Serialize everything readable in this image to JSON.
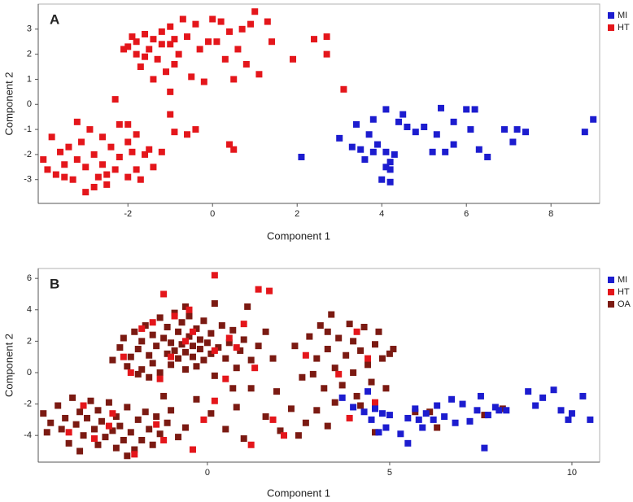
{
  "chart_data": [
    {
      "type": "scatter",
      "label": "A",
      "x_label": "Component 1",
      "y_label": "Component 2",
      "xlim": [
        -4.12,
        9.15
      ],
      "ylim": [
        -3.95,
        4.0
      ],
      "xticks": [
        -2,
        0,
        2,
        4,
        6,
        8
      ],
      "yticks": [
        -3,
        -2,
        -1,
        0,
        1,
        2,
        3
      ],
      "series": [
        {
          "name": "MI",
          "color": "#1c1ccf",
          "x": [
            2.1,
            3.0,
            3.3,
            3.4,
            3.5,
            3.6,
            3.7,
            3.8,
            3.9,
            4.0,
            4.1,
            4.1,
            4.2,
            4.2,
            4.2,
            4.3,
            4.4,
            4.5,
            4.6,
            4.8,
            5.0,
            5.2,
            5.3,
            5.4,
            5.5,
            5.7,
            5.7,
            6.0,
            6.1,
            6.2,
            6.3,
            6.5,
            6.9,
            7.1,
            7.2,
            7.4,
            8.8,
            9.0,
            4.1,
            3.8
          ],
          "values": [
            -2.1,
            -1.35,
            -1.7,
            -0.8,
            -1.8,
            -2.2,
            -1.2,
            -0.6,
            -1.6,
            -3.0,
            -0.2,
            -1.9,
            -2.3,
            -2.6,
            -3.1,
            -2.0,
            -0.7,
            -0.4,
            -0.9,
            -1.1,
            -0.9,
            -1.9,
            -1.2,
            -0.15,
            -1.9,
            -0.7,
            -1.6,
            -0.2,
            -1.0,
            -0.2,
            -1.8,
            -2.1,
            -1.0,
            -1.5,
            -1.0,
            -1.1,
            -1.1,
            -0.6,
            -2.5,
            -1.9
          ]
        },
        {
          "name": "HT",
          "color": "#e4161b",
          "x": [
            -2.1,
            -2.0,
            -1.9,
            -1.8,
            -1.7,
            -1.6,
            -1.5,
            -1.4,
            -1.4,
            -1.3,
            -1.2,
            -1.1,
            -1.0,
            -1.0,
            -0.9,
            -0.8,
            -0.7,
            -0.6,
            -0.5,
            -0.4,
            -0.3,
            -0.2,
            0.0,
            0.1,
            0.2,
            0.3,
            0.4,
            0.5,
            0.6,
            0.7,
            0.8,
            0.9,
            1.0,
            1.1,
            1.3,
            1.4,
            1.9,
            2.4,
            2.7,
            2.7,
            3.1,
            -1.8,
            -1.6,
            -1.2,
            -0.9,
            -0.1,
            -2.3,
            -2.0,
            -1.0,
            -1.0,
            -1.2,
            -0.4,
            -0.6,
            0.4,
            0.5,
            -0.9,
            -4.0,
            -3.9,
            -3.8,
            -3.7,
            -3.6,
            -3.5,
            -3.4,
            -3.3,
            -3.2,
            -3.2,
            -3.1,
            -3.0,
            -3.0,
            -2.9,
            -2.8,
            -2.7,
            -2.6,
            -2.6,
            -2.5,
            -2.4,
            -2.3,
            -2.2,
            -2.2,
            -2.0,
            -2.0,
            -1.9,
            -1.8,
            -1.7,
            -1.5,
            -1.4,
            -2.5,
            -3.5,
            -2.8,
            -1.8,
            -1.6
          ],
          "values": [
            2.2,
            2.3,
            2.7,
            2.0,
            1.5,
            2.8,
            2.2,
            1.0,
            2.6,
            1.8,
            2.9,
            1.3,
            2.4,
            3.1,
            1.6,
            2.0,
            3.4,
            2.7,
            1.1,
            3.2,
            2.2,
            0.9,
            3.4,
            2.5,
            3.3,
            1.8,
            2.9,
            1.0,
            2.2,
            3.0,
            1.6,
            3.2,
            3.7,
            1.2,
            3.3,
            2.5,
            1.8,
            2.6,
            2.7,
            2.0,
            0.6,
            2.5,
            1.9,
            2.4,
            2.6,
            2.5,
            0.2,
            -0.8,
            -0.4,
            0.5,
            -1.9,
            -1.0,
            -1.2,
            -1.6,
            -1.8,
            -1.1,
            -2.2,
            -2.6,
            -1.3,
            -2.8,
            -1.9,
            -2.4,
            -1.7,
            -3.0,
            -0.7,
            -2.2,
            -1.5,
            -2.5,
            -3.5,
            -1.0,
            -2.0,
            -2.9,
            -1.3,
            -2.4,
            -3.2,
            -1.7,
            -2.6,
            -0.8,
            -2.1,
            -1.5,
            -2.9,
            -1.9,
            -2.6,
            -3.0,
            -1.8,
            -2.5,
            -2.8,
            -2.9,
            -3.3,
            -1.2,
            -2.0
          ]
        }
      ]
    },
    {
      "type": "scatter",
      "label": "B",
      "x_label": "Component 1",
      "y_label": "Component 2",
      "xlim": [
        -4.64,
        10.76
      ],
      "ylim": [
        -5.7,
        6.63
      ],
      "xticks": [
        0,
        5,
        10
      ],
      "yticks": [
        -4,
        -2,
        0,
        2,
        4,
        6
      ],
      "series": [
        {
          "name": "MI",
          "color": "#1c1ccf",
          "x": [
            3.7,
            4.0,
            4.3,
            4.5,
            4.6,
            4.7,
            4.9,
            5.0,
            5.3,
            5.5,
            5.7,
            5.8,
            6.0,
            6.3,
            6.5,
            6.7,
            6.8,
            7.0,
            7.2,
            7.4,
            7.5,
            7.6,
            7.7,
            7.9,
            8.0,
            8.2,
            8.8,
            9.0,
            9.2,
            9.5,
            9.7,
            9.9,
            10.0,
            10.3,
            10.5,
            6.2,
            5.9,
            4.8,
            4.4,
            5.5
          ],
          "values": [
            -1.6,
            -2.2,
            -2.5,
            -3.0,
            -2.3,
            -3.8,
            -3.5,
            -2.7,
            -3.9,
            -4.5,
            -2.3,
            -3.0,
            -2.6,
            -2.1,
            -2.8,
            -1.7,
            -3.2,
            -2.0,
            -3.1,
            -2.4,
            -1.5,
            -4.8,
            -2.7,
            -2.2,
            -2.4,
            -2.4,
            -1.2,
            -2.1,
            -1.6,
            -1.1,
            -2.4,
            -3.0,
            -2.6,
            -1.5,
            -3.0,
            -3.0,
            -3.5,
            -2.6,
            -1.2,
            -2.9
          ]
        },
        {
          "name": "HT",
          "color": "#e4161b",
          "x": [
            0.2,
            1.4,
            1.7,
            -1.2,
            -0.5,
            -1.5,
            -0.4,
            1.0,
            0.6,
            -2.3,
            -2.1,
            -1.0,
            0.2,
            1.3,
            -0.9,
            -1.8,
            0.5,
            1.8,
            2.1,
            1.2,
            -0.4,
            -1.4,
            -2.7,
            -3.1,
            -3.4,
            -2.0,
            -3.8,
            -1.2,
            2.7,
            3.6,
            4.1,
            4.4,
            4.6,
            3.9,
            -1.3,
            0.2,
            -0.6,
            0.8,
            -2.6,
            -0.1
          ],
          "values": [
            6.2,
            5.3,
            5.2,
            5.0,
            4.0,
            3.2,
            2.6,
            3.1,
            2.2,
            1.0,
            0.0,
            1.0,
            1.4,
            0.3,
            3.6,
            2.8,
            -0.4,
            -3.0,
            -4.0,
            -4.6,
            -4.9,
            -3.3,
            -3.4,
            -4.2,
            -2.1,
            -5.2,
            -3.8,
            -4.3,
            1.1,
            -0.1,
            2.6,
            0.9,
            -1.9,
            -2.9,
            -0.4,
            -1.8,
            2.0,
            1.6,
            -2.6,
            -3.0
          ]
        },
        {
          "name": "OA",
          "color": "#7b1a12",
          "x": [
            -2.4,
            -2.3,
            -2.2,
            -2.1,
            -2.0,
            -1.9,
            -1.8,
            -1.8,
            -1.7,
            -1.6,
            -1.5,
            -1.5,
            -1.4,
            -1.3,
            -1.3,
            -1.2,
            -1.1,
            -1.1,
            -1.0,
            -1.0,
            -0.9,
            -0.9,
            -0.8,
            -0.8,
            -0.7,
            -0.7,
            -0.6,
            -0.6,
            -0.5,
            -0.5,
            -0.4,
            -0.4,
            -0.3,
            -0.3,
            -0.2,
            -0.2,
            -0.1,
            -0.1,
            0.0,
            0.1,
            0.1,
            0.2,
            0.3,
            0.4,
            0.5,
            0.6,
            0.7,
            0.8,
            0.9,
            1.0,
            1.2,
            1.4,
            1.6,
            1.8,
            -1.6,
            -2.6,
            -0.6,
            0.2,
            1.1,
            -1.9,
            -4.5,
            -4.4,
            -4.3,
            -4.1,
            -4.0,
            -3.9,
            -3.8,
            -3.7,
            -3.6,
            -3.5,
            -3.4,
            -3.3,
            -3.2,
            -3.1,
            -3.0,
            -3.0,
            -2.9,
            -2.8,
            -2.7,
            -2.6,
            -2.5,
            -2.5,
            -2.4,
            -2.3,
            -2.2,
            -2.1,
            -2.0,
            -1.9,
            -1.8,
            -1.7,
            -1.6,
            -1.5,
            -1.4,
            -1.3,
            -1.1,
            -1.0,
            -0.8,
            -0.6,
            -2.2,
            -3.5,
            2.4,
            2.6,
            2.8,
            3.0,
            3.1,
            3.2,
            3.3,
            3.4,
            3.5,
            3.6,
            3.7,
            3.8,
            3.9,
            4.0,
            4.0,
            4.1,
            4.2,
            4.3,
            4.4,
            4.5,
            4.6,
            4.7,
            4.8,
            4.9,
            5.0,
            5.1,
            3.3,
            4.2,
            2.9,
            4.6,
            0.8,
            1.2,
            1.6,
            2.0,
            2.3,
            2.7,
            3.0,
            3.3,
            3.5,
            1.9,
            0.5,
            0.1,
            -0.3,
            1.0,
            2.5,
            5.7,
            6.1,
            6.3,
            7.6,
            8.1,
            0.7,
            -1.2
          ],
          "values": [
            1.6,
            2.2,
            0.4,
            1.0,
            2.6,
            1.5,
            0.2,
            2.0,
            3.0,
            1.1,
            0.6,
            2.4,
            1.7,
            3.5,
            0.0,
            2.2,
            1.2,
            2.9,
            0.5,
            1.9,
            3.8,
            1.4,
            2.6,
            0.9,
            1.8,
            3.2,
            0.2,
            1.3,
            2.3,
            3.6,
            1.0,
            1.7,
            2.8,
            0.4,
            1.5,
            2.1,
            3.3,
            0.8,
            1.9,
            1.2,
            2.5,
            -0.2,
            1.6,
            3.0,
            0.9,
            1.9,
            2.7,
            0.3,
            1.4,
            2.1,
            0.8,
            1.7,
            2.6,
            0.9,
            -0.3,
            0.8,
            4.2,
            4.4,
            4.2,
            -0.1,
            -2.6,
            -3.8,
            -3.2,
            -2.1,
            -3.6,
            -2.9,
            -4.5,
            -1.6,
            -3.3,
            -2.5,
            -4.0,
            -2.9,
            -1.8,
            -3.6,
            -4.6,
            -2.4,
            -3.1,
            -4.1,
            -1.9,
            -3.7,
            -4.8,
            -2.8,
            -3.4,
            -4.3,
            -2.2,
            -3.8,
            -4.9,
            -3.0,
            -4.3,
            -2.5,
            -3.6,
            -4.6,
            -2.8,
            -3.9,
            -3.2,
            -2.4,
            -4.1,
            -3.5,
            -5.3,
            -5.0,
            1.7,
            -0.3,
            2.3,
            0.9,
            3.0,
            -1.0,
            1.5,
            3.7,
            0.3,
            2.2,
            -0.8,
            1.1,
            3.1,
            0.0,
            2.0,
            -1.5,
            1.4,
            2.9,
            0.5,
            -0.6,
            1.8,
            2.6,
            0.9,
            -1.0,
            1.2,
            1.5,
            2.6,
            -2.1,
            -0.1,
            -3.8,
            -2.2,
            -1.0,
            -2.8,
            -3.7,
            -2.3,
            -3.2,
            -2.4,
            -3.4,
            -1.9,
            -1.2,
            -3.6,
            -2.6,
            -1.7,
            -4.2,
            -4.0,
            -2.5,
            -2.5,
            -3.5,
            -2.7,
            -2.3,
            -1.0,
            -1.5
          ]
        }
      ]
    }
  ]
}
